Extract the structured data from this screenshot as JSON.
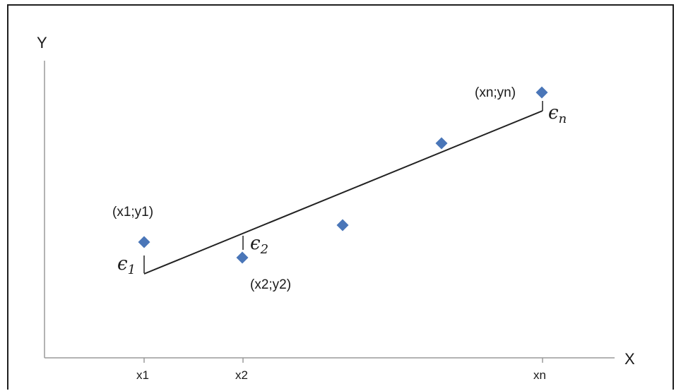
{
  "axes": {
    "y_label": "Y",
    "x_label": "X",
    "x_ticks": [
      "x1",
      "x2",
      "xn"
    ]
  },
  "points": [
    {
      "label": "(x1;y1)",
      "error_symbol": "ϵ",
      "error_sub": "1"
    },
    {
      "label": "(x2;y2)",
      "error_symbol": "ϵ",
      "error_sub": "2"
    },
    {
      "label": "",
      "error_symbol": "",
      "error_sub": ""
    },
    {
      "label": "",
      "error_symbol": "",
      "error_sub": ""
    },
    {
      "label": "(xn;yn)",
      "error_symbol": "ϵ",
      "error_sub": "n"
    }
  ],
  "colors": {
    "point": "#4a76b8",
    "line": "#222222",
    "axis": "#9a9a9a"
  }
}
